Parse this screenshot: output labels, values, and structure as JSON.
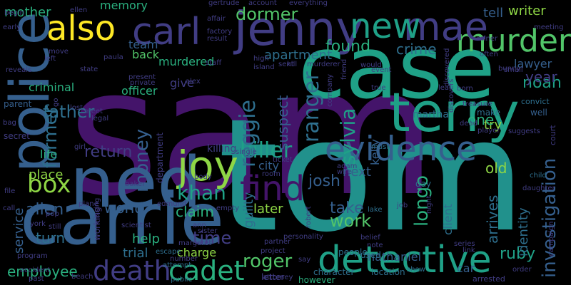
{
  "background": "#000000",
  "palette": {
    "purple": "#44146a",
    "indigo": "#413d84",
    "blue": "#355f8d",
    "slate": "#2e6f8e",
    "teal": "#21918c",
    "sea": "#1fa187",
    "green": "#2ab07f",
    "lime": "#52c569",
    "chartreuse": "#8ed645",
    "yellow": "#fde725"
  },
  "words": [
    {
      "text": "sam",
      "color": "purple"
    },
    {
      "text": "tom",
      "color": "teal"
    },
    {
      "text": "case",
      "color": "sea"
    },
    {
      "text": "carrie",
      "color": "blue"
    },
    {
      "text": "ned",
      "color": "blue"
    },
    {
      "text": "terry",
      "color": "sea"
    },
    {
      "text": "jenny",
      "color": "indigo"
    },
    {
      "text": "police",
      "color": "blue"
    },
    {
      "text": "detective",
      "color": "sea"
    },
    {
      "text": "evidence",
      "color": "blue"
    },
    {
      "text": "joy",
      "color": "chartreuse"
    },
    {
      "text": "also",
      "color": "yellow"
    },
    {
      "text": "carl",
      "color": "indigo"
    },
    {
      "text": "murder",
      "color": "lime"
    },
    {
      "text": "mae",
      "color": "indigo"
    },
    {
      "text": "new",
      "color": "sea"
    },
    {
      "text": "find",
      "color": "purple"
    },
    {
      "text": "death",
      "color": "indigo"
    },
    {
      "text": "cadet",
      "color": "green"
    },
    {
      "text": "box",
      "color": "chartreuse"
    },
    {
      "text": "killer",
      "color": "sea"
    },
    {
      "text": "khan",
      "color": "sea"
    },
    {
      "text": "money",
      "color": "blue"
    },
    {
      "text": "father",
      "color": "slate"
    },
    {
      "text": "reggie",
      "color": "slate"
    },
    {
      "text": "ranger",
      "color": "slate"
    },
    {
      "text": "sylvia",
      "color": "sea"
    },
    {
      "text": "longo",
      "color": "green"
    },
    {
      "text": "investigation",
      "color": "blue"
    },
    {
      "text": "noah",
      "color": "sea"
    },
    {
      "text": "ruby",
      "color": "sea"
    },
    {
      "text": "former",
      "color": "slate"
    },
    {
      "text": "allen",
      "color": "blue"
    },
    {
      "text": "time",
      "color": "indigo"
    },
    {
      "text": "employee",
      "color": "green"
    },
    {
      "text": "roger",
      "color": "lime"
    },
    {
      "text": "josh",
      "color": "blue"
    },
    {
      "text": "work",
      "color": "lime"
    },
    {
      "text": "take",
      "color": "blue"
    },
    {
      "text": "crime",
      "color": "slate"
    },
    {
      "text": "found",
      "color": "green"
    },
    {
      "text": "apartment",
      "color": "slate"
    },
    {
      "text": "dormer",
      "color": "lime"
    },
    {
      "text": "team",
      "color": "blue"
    },
    {
      "text": "murdered",
      "color": "green"
    },
    {
      "text": "back",
      "color": "lime"
    },
    {
      "text": "mother",
      "color": "green"
    },
    {
      "text": "memory",
      "color": "green"
    },
    {
      "text": "tell",
      "color": "blue"
    },
    {
      "text": "writer",
      "color": "chartreuse"
    },
    {
      "text": "lawyer",
      "color": "blue"
    },
    {
      "text": "year",
      "color": "indigo"
    },
    {
      "text": "client",
      "color": "slate"
    },
    {
      "text": "identity",
      "color": "slate"
    },
    {
      "text": "arrives",
      "color": "slate"
    },
    {
      "text": "try",
      "color": "chartreuse"
    },
    {
      "text": "one",
      "color": "green"
    },
    {
      "text": "old",
      "color": "chartreuse"
    },
    {
      "text": "next",
      "color": "blue"
    },
    {
      "text": "suspect",
      "color": "blue"
    },
    {
      "text": "martha",
      "color": "slate"
    },
    {
      "text": "kelly",
      "color": "blue"
    },
    {
      "text": "city",
      "color": "blue"
    },
    {
      "text": "killing",
      "color": "indigo"
    },
    {
      "text": "later",
      "color": "chartreuse"
    },
    {
      "text": "guilty",
      "color": "slate"
    },
    {
      "text": "claim",
      "color": "green"
    },
    {
      "text": "help",
      "color": "green"
    },
    {
      "text": "trial",
      "color": "slate"
    },
    {
      "text": "charge",
      "color": "chartreuse"
    },
    {
      "text": "world",
      "color": "blue"
    },
    {
      "text": "return",
      "color": "indigo"
    },
    {
      "text": "life",
      "color": "green"
    },
    {
      "text": "place",
      "color": "chartreuse"
    },
    {
      "text": "turn",
      "color": "slate"
    },
    {
      "text": "service",
      "color": "blue"
    },
    {
      "text": "nathaniel",
      "color": "blue"
    },
    {
      "text": "car",
      "color": "blue"
    },
    {
      "text": "officer",
      "color": "green"
    },
    {
      "text": "give",
      "color": "indigo"
    },
    {
      "text": "criminal",
      "color": "green"
    },
    {
      "text": "parent",
      "color": "blue"
    },
    {
      "text": "secret",
      "color": "indigo"
    },
    {
      "text": "used",
      "color": "slate"
    },
    {
      "text": "letter",
      "color": "indigo"
    },
    {
      "text": "day",
      "color": "slate"
    },
    {
      "text": "make",
      "color": "slate"
    },
    {
      "text": "well",
      "color": "blue"
    },
    {
      "text": "court",
      "color": "indigo"
    },
    {
      "text": "convict",
      "color": "slate"
    },
    {
      "text": "however",
      "color": "green"
    },
    {
      "text": "character",
      "color": "slate"
    },
    {
      "text": "location",
      "color": "slate"
    },
    {
      "text": "arrested",
      "color": "indigo"
    },
    {
      "text": "campaign",
      "color": "indigo"
    },
    {
      "text": "people",
      "color": "slate"
    },
    {
      "text": "attorney",
      "color": "indigo"
    },
    {
      "text": "project",
      "color": "indigo"
    },
    {
      "text": "partner",
      "color": "indigo"
    },
    {
      "text": "show",
      "color": "slate"
    },
    {
      "text": "must",
      "color": "slate"
    },
    {
      "text": "treasure",
      "color": "indigo"
    },
    {
      "text": "child",
      "color": "slate"
    },
    {
      "text": "daughter",
      "color": "indigo"
    },
    {
      "text": "lake",
      "color": "slate"
    },
    {
      "text": "personality",
      "color": "indigo"
    },
    {
      "text": "escape",
      "color": "slate"
    },
    {
      "text": "attempt",
      "color": "slate"
    },
    {
      "text": "public",
      "color": "slate"
    },
    {
      "text": "department",
      "color": "indigo"
    },
    {
      "text": "event",
      "color": "indigo"
    },
    {
      "text": "would",
      "color": "indigo"
    },
    {
      "text": "discovered",
      "color": "indigo"
    },
    {
      "text": "staff",
      "color": "indigo"
    },
    {
      "text": "factory",
      "color": "indigo"
    },
    {
      "text": "result",
      "color": "indigo"
    },
    {
      "text": "affair",
      "color": "indigo"
    },
    {
      "text": "account",
      "color": "indigo"
    },
    {
      "text": "everything",
      "color": "indigo"
    },
    {
      "text": "gertrude",
      "color": "indigo"
    },
    {
      "text": "meeting",
      "color": "indigo"
    },
    {
      "text": "ellen",
      "color": "indigo"
    },
    {
      "text": "begin",
      "color": "indigo"
    },
    {
      "text": "early",
      "color": "indigo"
    },
    {
      "text": "move",
      "color": "indigo"
    },
    {
      "text": "left",
      "color": "indigo"
    },
    {
      "text": "reveals",
      "color": "indigo"
    },
    {
      "text": "paula",
      "color": "indigo"
    },
    {
      "text": "present",
      "color": "indigo"
    },
    {
      "text": "private",
      "color": "indigo"
    },
    {
      "text": "high",
      "color": "indigo"
    },
    {
      "text": "island",
      "color": "indigo"
    },
    {
      "text": "sent",
      "color": "indigo"
    },
    {
      "text": "kill",
      "color": "indigo"
    },
    {
      "text": "murderer",
      "color": "indigo"
    },
    {
      "text": "state",
      "color": "indigo"
    },
    {
      "text": "alex",
      "color": "indigo"
    },
    {
      "text": "often",
      "color": "indigo"
    },
    {
      "text": "bunny",
      "color": "indigo"
    },
    {
      "text": "small",
      "color": "indigo"
    },
    {
      "text": "miner",
      "color": "indigo"
    },
    {
      "text": "true",
      "color": "indigo"
    },
    {
      "text": "leaf",
      "color": "indigo"
    },
    {
      "text": "born",
      "color": "indigo"
    },
    {
      "text": "friend",
      "color": "indigo"
    },
    {
      "text": "lost",
      "color": "indigo"
    },
    {
      "text": "go",
      "color": "indigo"
    },
    {
      "text": "meet",
      "color": "indigo"
    },
    {
      "text": "legal",
      "color": "indigo"
    },
    {
      "text": "bag",
      "color": "indigo"
    },
    {
      "text": "girl",
      "color": "indigo"
    },
    {
      "text": "adam",
      "color": "indigo"
    },
    {
      "text": "wife",
      "color": "indigo"
    },
    {
      "text": "ticket",
      "color": "indigo"
    },
    {
      "text": "single",
      "color": "indigo"
    },
    {
      "text": "company",
      "color": "indigo"
    },
    {
      "text": "discovers",
      "color": "indigo"
    },
    {
      "text": "dead",
      "color": "indigo"
    },
    {
      "text": "player",
      "color": "indigo"
    },
    {
      "text": "suggests",
      "color": "indigo"
    },
    {
      "text": "file",
      "color": "indigo"
    },
    {
      "text": "baker",
      "color": "indigo"
    },
    {
      "text": "body",
      "color": "indigo"
    },
    {
      "text": "edmund",
      "color": "indigo"
    },
    {
      "text": "empty",
      "color": "indigo"
    },
    {
      "text": "room",
      "color": "indigo"
    },
    {
      "text": "job",
      "color": "indigo"
    },
    {
      "text": "night",
      "color": "indigo"
    },
    {
      "text": "call",
      "color": "indigo"
    },
    {
      "text": "pop",
      "color": "indigo"
    },
    {
      "text": "plane",
      "color": "indigo"
    },
    {
      "text": "york",
      "color": "indigo"
    },
    {
      "text": "still",
      "color": "indigo"
    },
    {
      "text": "missing",
      "color": "indigo"
    },
    {
      "text": "working",
      "color": "indigo"
    },
    {
      "text": "scientist",
      "color": "indigo"
    },
    {
      "text": "ann",
      "color": "indigo"
    },
    {
      "text": "sister",
      "color": "indigo"
    },
    {
      "text": "robert",
      "color": "indigo"
    },
    {
      "text": "number",
      "color": "indigo"
    },
    {
      "text": "margaret",
      "color": "indigo"
    },
    {
      "text": "program",
      "color": "indigo"
    },
    {
      "text": "accident",
      "color": "indigo"
    },
    {
      "text": "past",
      "color": "indigo"
    },
    {
      "text": "beach",
      "color": "indigo"
    },
    {
      "text": "belief",
      "color": "indigo"
    },
    {
      "text": "note",
      "color": "indigo"
    },
    {
      "text": "say",
      "color": "indigo"
    },
    {
      "text": "link",
      "color": "indigo"
    },
    {
      "text": "series",
      "color": "indigo"
    },
    {
      "text": "order",
      "color": "indigo"
    }
  ]
}
